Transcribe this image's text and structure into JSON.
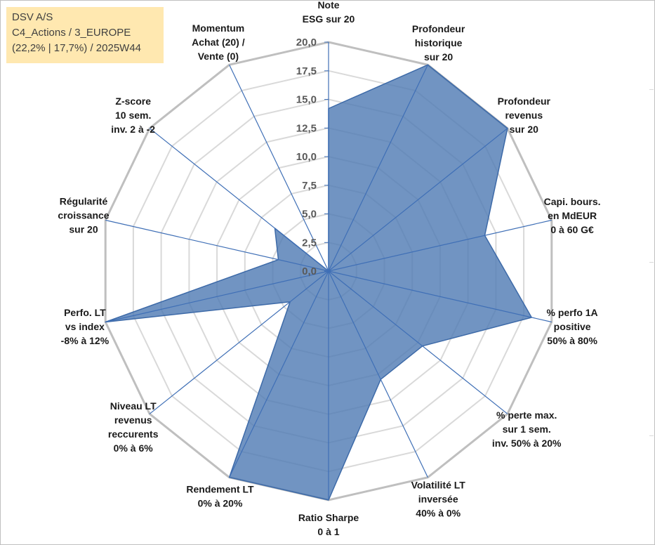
{
  "info": {
    "line1": "DSV A/S",
    "line2": "C4_Actions / 3_EUROPE",
    "line3": "(22,2% | 17,7%) / 2025W44"
  },
  "colors": {
    "fill": "#4e79b3",
    "stroke": "#3d6aa8",
    "grid": "#d9d9d9",
    "outer_grid": "#bfbfbf",
    "spoke": "#3f6fb6",
    "info_bg": "#ffe8b0"
  },
  "chart_data": {
    "type": "radar",
    "ylim": [
      0,
      20
    ],
    "grid": true,
    "tick_labels": [
      "0,0",
      "2,5",
      "5,0",
      "7,5",
      "10,0",
      "12,5",
      "15,0",
      "17,5",
      "20,0"
    ],
    "axes": [
      {
        "lines": [
          "Note",
          "ESG sur 20"
        ]
      },
      {
        "lines": [
          "Profondeur",
          "historique",
          "sur 20"
        ]
      },
      {
        "lines": [
          "Profondeur",
          "revenus",
          "sur 20"
        ]
      },
      {
        "lines": [
          "Capi. bours.",
          "en MdEUR",
          "0 à 60 G€"
        ]
      },
      {
        "lines": [
          "% perfo 1A",
          "positive",
          "50% à 80%"
        ]
      },
      {
        "lines": [
          "% perte max.",
          "sur 1 sem.",
          "inv. 50% à 20%"
        ]
      },
      {
        "lines": [
          "Volatilité LT",
          "inversée",
          "40% à 0%"
        ]
      },
      {
        "lines": [
          "Ratio Sharpe",
          "0 à 1"
        ]
      },
      {
        "lines": [
          "Rendement LT",
          "0% à 20%"
        ]
      },
      {
        "lines": [
          "Niveau LT",
          "revenus",
          "reccurents",
          "0% à 6%"
        ]
      },
      {
        "lines": [
          "Perfo. LT",
          "vs index",
          "-8% à 12%"
        ]
      },
      {
        "lines": [
          "Régularité",
          "croissance",
          "sur 20"
        ]
      },
      {
        "lines": [
          "Z-score",
          "10 sem.",
          "inv. 2 à -2"
        ]
      },
      {
        "lines": [
          "Momentum",
          "Achat (20) /",
          "Vente (0)"
        ]
      }
    ],
    "values": [
      14.2,
      20.0,
      20.0,
      14.0,
      18.2,
      10.5,
      10.5,
      20.0,
      20.0,
      4.3,
      20.0,
      4.5,
      6.0,
      0.0
    ]
  }
}
